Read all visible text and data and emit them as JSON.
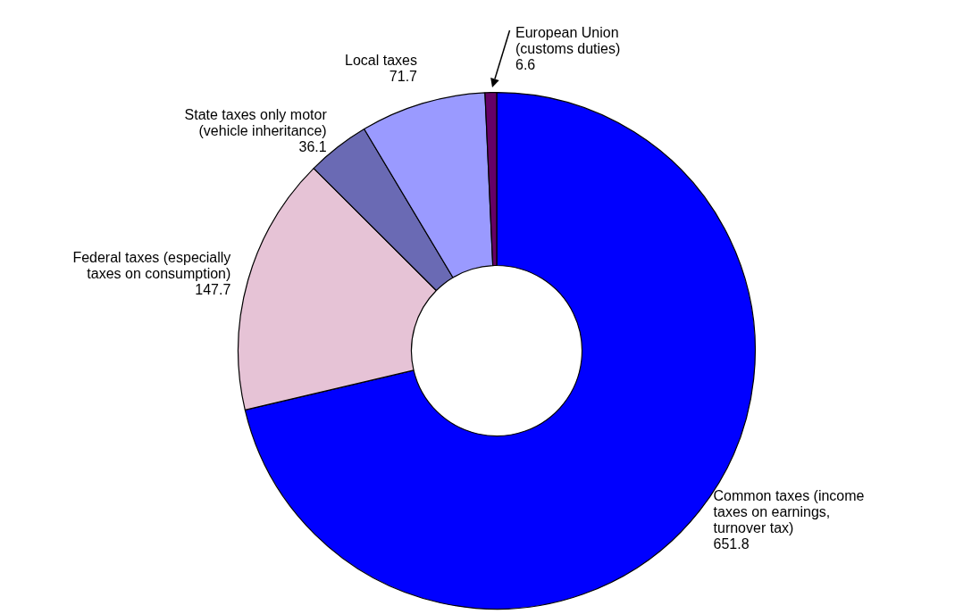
{
  "chart_data": {
    "type": "donut",
    "categories": [
      "Common taxes (income taxes on earnings, turnover tax)",
      "Federal taxes (especially taxes on consumption)",
      "State taxes only motor (vehicle inheritance)",
      "Local taxes",
      "European Union (customs duties)"
    ],
    "values": [
      651.8,
      147.7,
      36.1,
      71.7,
      6.6
    ],
    "colors": [
      "#0000ff",
      "#e6c3d6",
      "#6a6ab4",
      "#9a9aff",
      "#660066"
    ],
    "data_labels": true
  }
}
